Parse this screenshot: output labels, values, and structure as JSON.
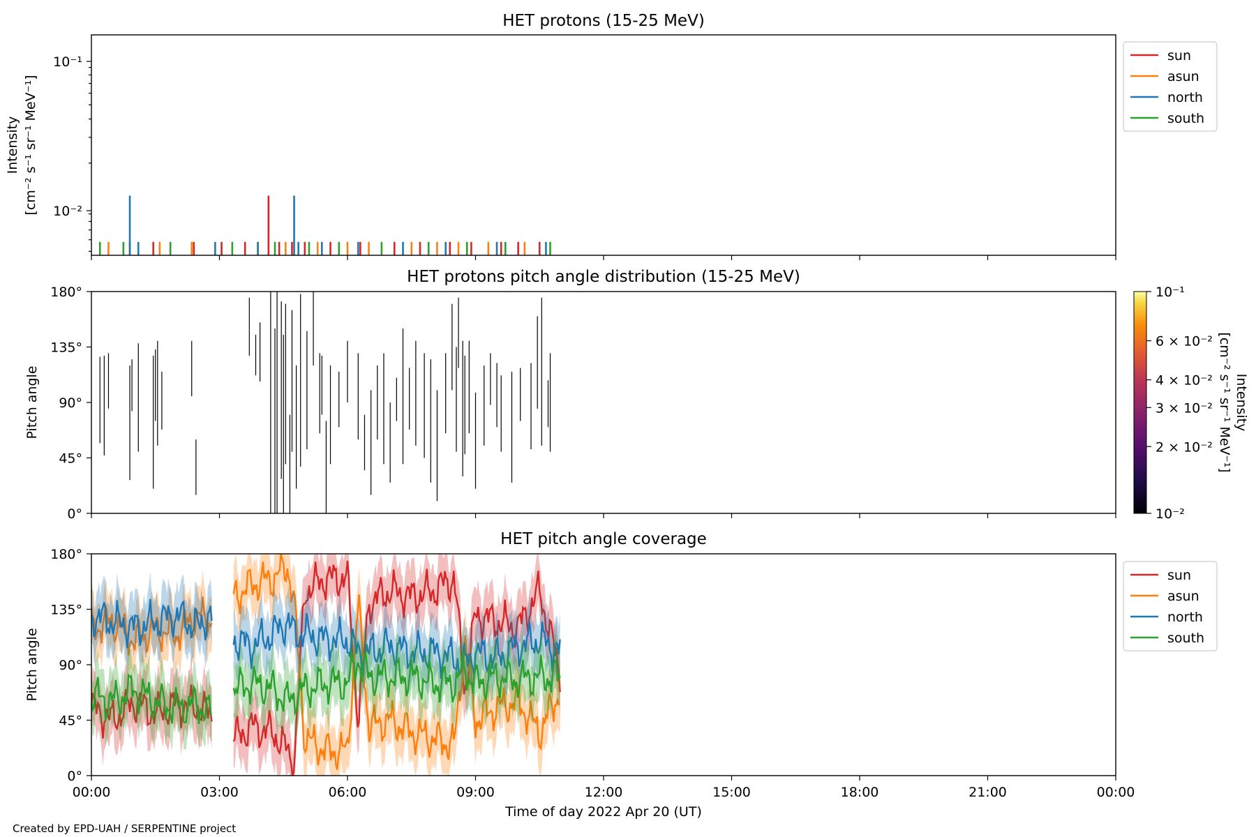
{
  "footer": "Created by EPD-UAH / SERPENTINE project",
  "colors": {
    "sun": "#d62728",
    "asun": "#ff7f0e",
    "north": "#1f77b4",
    "south": "#2ca02c"
  },
  "x_axis": {
    "label": "Time of day 2022 Apr 20 (UT)",
    "ticks": [
      "00:00",
      "03:00",
      "06:00",
      "09:00",
      "12:00",
      "15:00",
      "18:00",
      "21:00",
      "00:00"
    ]
  },
  "chart_data": [
    {
      "type": "line",
      "title": "HET protons (15-25 MeV)",
      "ylabel": "Intensity",
      "yunit": "[cm⁻² s⁻¹ sr⁻¹ MeV⁻¹]",
      "yscale": "log",
      "ylim": [
        0.0047,
        0.15
      ],
      "y_ticks": [
        "10⁻¹",
        "10⁻²"
      ],
      "xlim": [
        "00:00",
        "24:00"
      ],
      "legend": {
        "placement": "outside-right-top",
        "entries": [
          "sun",
          "asun",
          "north",
          "south"
        ]
      },
      "series": [
        {
          "name": "sun",
          "spikes": [
            [
              4.15,
              0.012
            ],
            [
              0.9,
              0.0058
            ],
            [
              1.45,
              0.0058
            ],
            [
              2.4,
              0.0058
            ],
            [
              3.05,
              0.0058
            ],
            [
              3.6,
              0.0058
            ],
            [
              4.4,
              0.0058
            ],
            [
              4.7,
              0.0058
            ],
            [
              5.0,
              0.0058
            ],
            [
              5.6,
              0.0058
            ],
            [
              6.3,
              0.0058
            ],
            [
              7.1,
              0.0058
            ],
            [
              7.7,
              0.0058
            ],
            [
              8.4,
              0.0058
            ],
            [
              8.9,
              0.0058
            ],
            [
              9.6,
              0.0058
            ],
            [
              10.0,
              0.0058
            ],
            [
              10.5,
              0.0058
            ]
          ]
        },
        {
          "name": "asun",
          "spikes": [
            [
              0.4,
              0.0058
            ],
            [
              1.6,
              0.0058
            ],
            [
              2.35,
              0.0058
            ],
            [
              3.9,
              0.0058
            ],
            [
              4.55,
              0.0058
            ],
            [
              5.3,
              0.0058
            ],
            [
              6.0,
              0.0058
            ],
            [
              6.5,
              0.0058
            ],
            [
              7.5,
              0.0058
            ],
            [
              8.1,
              0.0058
            ],
            [
              8.6,
              0.0058
            ],
            [
              9.3,
              0.0058
            ],
            [
              10.15,
              0.0058
            ]
          ]
        },
        {
          "name": "north",
          "spikes": [
            [
              0.9,
              0.012
            ],
            [
              4.75,
              0.012
            ],
            [
              1.1,
              0.0058
            ],
            [
              2.9,
              0.0058
            ],
            [
              3.9,
              0.0058
            ],
            [
              4.85,
              0.0058
            ],
            [
              5.4,
              0.0058
            ],
            [
              6.25,
              0.0058
            ],
            [
              7.3,
              0.0058
            ],
            [
              8.3,
              0.0058
            ],
            [
              9.5,
              0.0058
            ],
            [
              10.65,
              0.0058
            ]
          ]
        },
        {
          "name": "south",
          "spikes": [
            [
              0.2,
              0.0058
            ],
            [
              0.75,
              0.0058
            ],
            [
              1.85,
              0.0058
            ],
            [
              3.3,
              0.0058
            ],
            [
              4.3,
              0.0058
            ],
            [
              5.1,
              0.0058
            ],
            [
              5.8,
              0.0058
            ],
            [
              6.8,
              0.0058
            ],
            [
              7.9,
              0.0058
            ],
            [
              8.8,
              0.0058
            ],
            [
              9.7,
              0.0058
            ],
            [
              10.75,
              0.0058
            ]
          ]
        }
      ]
    },
    {
      "type": "heatmap",
      "title": "HET protons pitch angle distribution (15-25 MeV)",
      "ylabel": "Pitch angle",
      "ylim": [
        0,
        180
      ],
      "y_ticks": [
        "0°",
        "45°",
        "90°",
        "135°",
        "180°"
      ],
      "xlim": [
        "00:00",
        "24:00"
      ],
      "colorbar": {
        "label": "Intensity",
        "unit": "[cm⁻² s⁻¹ sr⁻¹ MeV⁻¹]",
        "scale": "log",
        "range": [
          0.01,
          0.1
        ],
        "colormap": "inferno",
        "tick_labels": [
          "10⁻¹",
          "6 × 10⁻²",
          "4 × 10⁻²",
          "3 × 10⁻²",
          "2 × 10⁻²",
          "10⁻²"
        ]
      },
      "events": [
        [
          0.2,
          57,
          127
        ],
        [
          0.3,
          47,
          128
        ],
        [
          0.4,
          85,
          130
        ],
        [
          0.9,
          27,
          120
        ],
        [
          0.95,
          83,
          125
        ],
        [
          1.1,
          50,
          138
        ],
        [
          1.45,
          20,
          128
        ],
        [
          1.5,
          75,
          133
        ],
        [
          1.55,
          55,
          140
        ],
        [
          1.65,
          68,
          115
        ],
        [
          2.35,
          95,
          140
        ],
        [
          2.45,
          15,
          60
        ],
        [
          3.7,
          128,
          175
        ],
        [
          3.85,
          112,
          145
        ],
        [
          3.95,
          107,
          155
        ],
        [
          4.2,
          0,
          180
        ],
        [
          4.3,
          0,
          150
        ],
        [
          4.35,
          0,
          180
        ],
        [
          4.45,
          28,
          172
        ],
        [
          4.5,
          0,
          145
        ],
        [
          4.55,
          40,
          170
        ],
        [
          4.65,
          0,
          80
        ],
        [
          4.7,
          50,
          165
        ],
        [
          4.8,
          20,
          120
        ],
        [
          4.9,
          38,
          178
        ],
        [
          5.05,
          52,
          148
        ],
        [
          5.2,
          120,
          180
        ],
        [
          5.35,
          65,
          130
        ],
        [
          5.4,
          80,
          128
        ],
        [
          5.5,
          0,
          75
        ],
        [
          5.6,
          40,
          120
        ],
        [
          5.8,
          70,
          115
        ],
        [
          6.0,
          90,
          140
        ],
        [
          6.25,
          60,
          130
        ],
        [
          6.4,
          35,
          80
        ],
        [
          6.55,
          15,
          100
        ],
        [
          6.7,
          60,
          120
        ],
        [
          6.85,
          40,
          130
        ],
        [
          7.0,
          25,
          90
        ],
        [
          7.15,
          75,
          110
        ],
        [
          7.3,
          40,
          150
        ],
        [
          7.45,
          68,
          118
        ],
        [
          7.6,
          55,
          140
        ],
        [
          7.8,
          45,
          130
        ],
        [
          7.95,
          25,
          125
        ],
        [
          8.1,
          10,
          100
        ],
        [
          8.3,
          65,
          130
        ],
        [
          8.45,
          100,
          170
        ],
        [
          8.55,
          50,
          135
        ],
        [
          8.6,
          118,
          175
        ],
        [
          8.7,
          30,
          140
        ],
        [
          8.75,
          48,
          128
        ],
        [
          8.85,
          65,
          140
        ],
        [
          9.0,
          20,
          98
        ],
        [
          9.2,
          55,
          120
        ],
        [
          9.35,
          88,
          130
        ],
        [
          9.5,
          70,
          122
        ],
        [
          9.6,
          50,
          112
        ],
        [
          9.85,
          25,
          115
        ],
        [
          10.05,
          75,
          118
        ],
        [
          10.3,
          52,
          122
        ],
        [
          10.45,
          85,
          160
        ],
        [
          10.55,
          55,
          175
        ],
        [
          10.7,
          70,
          108
        ],
        [
          10.75,
          50,
          130
        ]
      ]
    },
    {
      "type": "line",
      "title": "HET pitch angle coverage",
      "ylabel": "Pitch angle",
      "ylim": [
        0,
        180
      ],
      "y_ticks": [
        "0°",
        "45°",
        "90°",
        "135°",
        "180°"
      ],
      "xlim": [
        "00:00",
        "24:00"
      ],
      "legend": {
        "placement": "outside-right-top",
        "entries": [
          "sun",
          "asun",
          "north",
          "south"
        ]
      },
      "shaded_band_halfwidth_deg": 22,
      "data_gap": [
        "02:50",
        "03:20"
      ],
      "series": [
        {
          "name": "sun",
          "x": [
            0,
            0.5,
            1,
            1.5,
            2,
            2.5,
            2.75,
            3.35,
            3.75,
            4.25,
            4.6,
            4.75,
            5.0,
            5.5,
            6.0,
            6.25,
            6.5,
            7.0,
            7.5,
            8.0,
            8.5,
            8.75,
            9.0,
            9.5,
            10.0,
            10.5,
            11.0
          ],
          "values": [
            55,
            45,
            60,
            50,
            58,
            55,
            50,
            30,
            40,
            35,
            20,
            10,
            150,
            160,
            160,
            45,
            140,
            150,
            145,
            150,
            160,
            70,
            130,
            125,
            120,
            150,
            80
          ]
        },
        {
          "name": "asun",
          "x": [
            0,
            0.5,
            1,
            1.5,
            2,
            2.5,
            2.75,
            3.35,
            3.75,
            4.25,
            4.6,
            4.75,
            5.0,
            5.5,
            6.0,
            6.25,
            6.5,
            7.0,
            7.5,
            8.0,
            8.5,
            8.75,
            9.0,
            9.5,
            10.0,
            10.5,
            11.0
          ],
          "values": [
            120,
            125,
            110,
            118,
            115,
            130,
            125,
            145,
            155,
            160,
            170,
            140,
            30,
            20,
            20,
            140,
            40,
            45,
            35,
            30,
            25,
            110,
            45,
            55,
            60,
            35,
            70
          ]
        },
        {
          "name": "north",
          "x": [
            0,
            0.5,
            1,
            1.5,
            2,
            2.5,
            2.75,
            3.35,
            3.75,
            4.25,
            4.6,
            4.75,
            5.0,
            5.5,
            6.0,
            6.25,
            6.5,
            7.0,
            7.5,
            8.0,
            8.5,
            8.75,
            9.0,
            9.5,
            10.0,
            10.5,
            11.0
          ],
          "values": [
            130,
            125,
            120,
            125,
            130,
            120,
            130,
            110,
            105,
            115,
            125,
            115,
            115,
            110,
            110,
            100,
            100,
            105,
            100,
            100,
            95,
            90,
            100,
            95,
            105,
            110,
            100
          ]
        },
        {
          "name": "south",
          "x": [
            0,
            0.5,
            1,
            1.5,
            2,
            2.5,
            2.75,
            3.35,
            3.75,
            4.25,
            4.6,
            4.75,
            5.0,
            5.5,
            6.0,
            6.25,
            6.5,
            7.0,
            7.5,
            8.0,
            8.5,
            8.75,
            9.0,
            9.5,
            10.0,
            10.5,
            11.0
          ],
          "values": [
            65,
            60,
            70,
            60,
            55,
            58,
            50,
            70,
            75,
            70,
            60,
            65,
            70,
            75,
            75,
            95,
            80,
            80,
            80,
            75,
            75,
            85,
            75,
            80,
            78,
            80,
            80
          ]
        }
      ]
    }
  ]
}
